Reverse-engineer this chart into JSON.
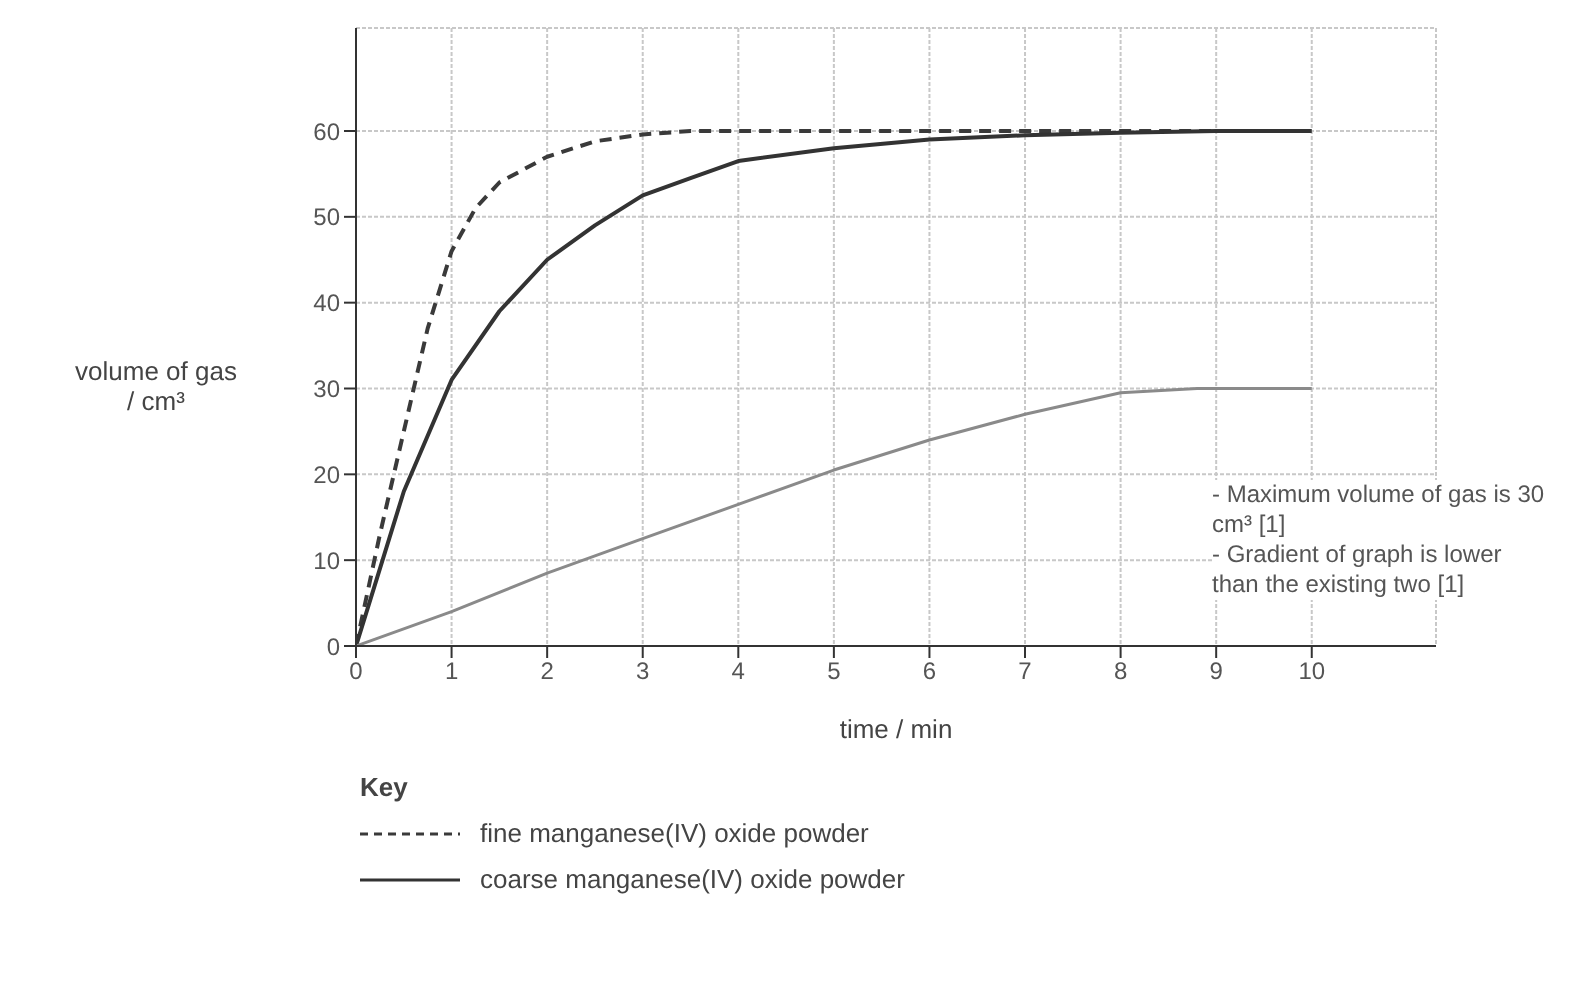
{
  "chart_data": {
    "type": "line",
    "xlabel": "time / min",
    "ylabel": "volume of gas / cm³",
    "legend_title": "Key",
    "xlim": [
      0,
      11.3
    ],
    "xticks": [
      0,
      1,
      2,
      3,
      4,
      5,
      6,
      7,
      8,
      9,
      10
    ],
    "ylim": [
      0,
      72
    ],
    "yticks": [
      0,
      10,
      20,
      30,
      40,
      50,
      60
    ],
    "grid": true,
    "legend": "bottom left",
    "marker": "none",
    "series": [
      {
        "name": "fine manganese(IV) oxide powder",
        "color": "#3a3a3a",
        "line_style": "dashed",
        "x": [
          0,
          0.25,
          0.5,
          0.75,
          1,
          1.25,
          1.5,
          2,
          2.5,
          3,
          3.5,
          4,
          5,
          6,
          7,
          8,
          9,
          10
        ],
        "values": [
          0,
          13,
          25,
          37,
          46,
          51,
          54,
          57,
          58.8,
          59.6,
          60,
          60,
          60,
          60,
          60,
          60,
          60,
          60
        ]
      },
      {
        "name": "coarse manganese(IV) oxide powder",
        "color": "#333333",
        "line_style": "solid",
        "x": [
          0,
          0.5,
          1,
          1.5,
          2,
          2.5,
          3,
          3.5,
          4,
          5,
          6,
          7,
          8,
          9,
          10
        ],
        "values": [
          0,
          18,
          31,
          39,
          45,
          49,
          52.5,
          54.5,
          56.5,
          58,
          59,
          59.5,
          59.8,
          60,
          60
        ]
      },
      {
        "color": "#8a8a8a",
        "line_style": "solid",
        "x": [
          0,
          1,
          2,
          3,
          4,
          5,
          6,
          7,
          8,
          8.8,
          10
        ],
        "values": [
          0,
          4,
          8.5,
          12.5,
          16.5,
          20.5,
          24,
          27,
          29.5,
          30,
          30
        ]
      }
    ],
    "annotations": [
      "- Maximum volume of gas is 30 cm³ [1]",
      "- Gradient of graph is lower than the existing two [1]"
    ]
  }
}
